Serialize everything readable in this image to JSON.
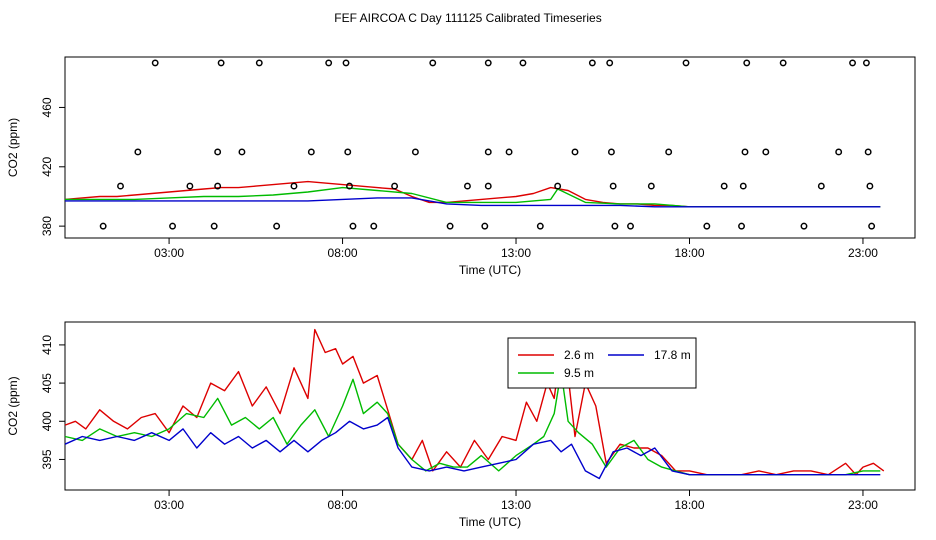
{
  "title": "FEF AIRCOA C  Day 111125  Calibrated Timeseries",
  "chart_data": [
    {
      "type": "scatter",
      "xlabel": "Time (UTC)",
      "ylabel": "CO2 (ppm)",
      "xlim": [
        0,
        24.5
      ],
      "ylim": [
        372,
        494
      ],
      "x_ticks": [
        3,
        8,
        13,
        18,
        23
      ],
      "x_tick_labels": [
        "03:00",
        "08:00",
        "13:00",
        "18:00",
        "23:00"
      ],
      "y_ticks": [
        380,
        420,
        460
      ],
      "y_tick_labels": [
        "380",
        "420",
        "460"
      ],
      "markers": [
        {
          "x": 1.1,
          "y": 380
        },
        {
          "x": 1.6,
          "y": 407
        },
        {
          "x": 2.1,
          "y": 430
        },
        {
          "x": 2.6,
          "y": 490
        },
        {
          "x": 3.1,
          "y": 380
        },
        {
          "x": 3.6,
          "y": 407
        },
        {
          "x": 4.3,
          "y": 380
        },
        {
          "x": 4.4,
          "y": 407
        },
        {
          "x": 4.4,
          "y": 430
        },
        {
          "x": 4.5,
          "y": 490
        },
        {
          "x": 5.1,
          "y": 430
        },
        {
          "x": 5.6,
          "y": 490
        },
        {
          "x": 6.1,
          "y": 380
        },
        {
          "x": 6.6,
          "y": 407
        },
        {
          "x": 7.1,
          "y": 430
        },
        {
          "x": 7.6,
          "y": 490
        },
        {
          "x": 8.1,
          "y": 490
        },
        {
          "x": 8.15,
          "y": 430
        },
        {
          "x": 8.2,
          "y": 407
        },
        {
          "x": 8.3,
          "y": 380
        },
        {
          "x": 8.9,
          "y": 380
        },
        {
          "x": 9.5,
          "y": 407
        },
        {
          "x": 10.1,
          "y": 430
        },
        {
          "x": 10.6,
          "y": 490
        },
        {
          "x": 11.1,
          "y": 380
        },
        {
          "x": 11.6,
          "y": 407
        },
        {
          "x": 12.1,
          "y": 380
        },
        {
          "x": 12.2,
          "y": 407
        },
        {
          "x": 12.2,
          "y": 430
        },
        {
          "x": 12.2,
          "y": 490
        },
        {
          "x": 12.8,
          "y": 430
        },
        {
          "x": 13.2,
          "y": 490
        },
        {
          "x": 13.7,
          "y": 380
        },
        {
          "x": 14.2,
          "y": 407
        },
        {
          "x": 14.7,
          "y": 430
        },
        {
          "x": 15.2,
          "y": 490
        },
        {
          "x": 15.7,
          "y": 490
        },
        {
          "x": 15.75,
          "y": 430
        },
        {
          "x": 15.8,
          "y": 407
        },
        {
          "x": 15.85,
          "y": 380
        },
        {
          "x": 16.3,
          "y": 380
        },
        {
          "x": 16.9,
          "y": 407
        },
        {
          "x": 17.4,
          "y": 430
        },
        {
          "x": 17.9,
          "y": 490
        },
        {
          "x": 18.5,
          "y": 380
        },
        {
          "x": 19.0,
          "y": 407
        },
        {
          "x": 19.5,
          "y": 380
        },
        {
          "x": 19.55,
          "y": 407
        },
        {
          "x": 19.6,
          "y": 430
        },
        {
          "x": 19.65,
          "y": 490
        },
        {
          "x": 20.2,
          "y": 430
        },
        {
          "x": 20.7,
          "y": 490
        },
        {
          "x": 21.3,
          "y": 380
        },
        {
          "x": 21.8,
          "y": 407
        },
        {
          "x": 22.3,
          "y": 430
        },
        {
          "x": 22.7,
          "y": 490
        },
        {
          "x": 23.1,
          "y": 490
        },
        {
          "x": 23.15,
          "y": 430
        },
        {
          "x": 23.2,
          "y": 407
        },
        {
          "x": 23.25,
          "y": 380
        }
      ],
      "series": [
        {
          "name": "2.6 m",
          "color": "#dd0000",
          "x": [
            0,
            0.5,
            1,
            1.5,
            2,
            2.5,
            3,
            3.5,
            4,
            4.5,
            5,
            5.5,
            6,
            6.5,
            7,
            7.5,
            8,
            8.5,
            9,
            9.5,
            10,
            10.5,
            11,
            11.5,
            12,
            12.5,
            13,
            13.5,
            14,
            14.5,
            15,
            15.5,
            16,
            16.5,
            17,
            17.5,
            18,
            19,
            20,
            21,
            22,
            23,
            23.5
          ],
          "y": [
            398,
            399,
            400,
            400,
            401,
            402,
            403,
            404,
            405,
            406,
            406,
            407,
            408,
            409,
            410,
            409,
            408,
            407,
            406,
            405,
            400,
            396,
            396,
            397,
            398,
            399,
            400,
            402,
            406,
            404,
            398,
            396,
            395,
            395,
            394,
            394,
            393,
            393,
            393,
            393,
            393,
            393,
            393
          ]
        },
        {
          "name": "9.5 m",
          "color": "#00bb00",
          "x": [
            0,
            1,
            2,
            3,
            4,
            5,
            6,
            7,
            8,
            9,
            10,
            11,
            12,
            13,
            14,
            14.2,
            15,
            16,
            17,
            18,
            19,
            20,
            21,
            22,
            23,
            23.5
          ],
          "y": [
            398,
            398,
            398,
            399,
            400,
            400,
            401,
            403,
            406,
            404,
            402,
            396,
            396,
            396,
            398,
            405,
            396,
            395,
            395,
            393,
            393,
            393,
            393,
            393,
            393,
            393
          ]
        },
        {
          "name": "17.8 m",
          "color": "#0000cc",
          "x": [
            0,
            1,
            2,
            3,
            4,
            5,
            6,
            7,
            8,
            9,
            10,
            11,
            12,
            13,
            14,
            15,
            16,
            17,
            18,
            19,
            20,
            21,
            22,
            23,
            23.5
          ],
          "y": [
            397,
            397,
            397,
            397,
            397,
            397,
            397,
            397,
            398,
            399,
            399,
            395,
            394,
            394,
            394,
            394,
            394,
            393,
            393,
            393,
            393,
            393,
            393,
            393,
            393
          ]
        }
      ]
    },
    {
      "type": "line",
      "xlabel": "Time (UTC)",
      "ylabel": "CO2 (ppm)",
      "xlim": [
        0,
        24.5
      ],
      "ylim": [
        391,
        413
      ],
      "x_ticks": [
        3,
        8,
        13,
        18,
        23
      ],
      "x_tick_labels": [
        "03:00",
        "08:00",
        "13:00",
        "18:00",
        "23:00"
      ],
      "y_ticks": [
        395,
        400,
        405,
        410
      ],
      "y_tick_labels": [
        "395",
        "400",
        "405",
        "410"
      ],
      "legend": {
        "position": "top-center",
        "entries": [
          "2.6 m",
          "17.8 m",
          "9.5 m"
        ]
      },
      "series": [
        {
          "name": "2.6 m",
          "color": "#dd0000",
          "x": [
            0,
            0.3,
            0.6,
            1.0,
            1.4,
            1.8,
            2.2,
            2.6,
            3.0,
            3.4,
            3.8,
            4.2,
            4.6,
            5.0,
            5.4,
            5.8,
            6.2,
            6.6,
            7.0,
            7.2,
            7.5,
            7.8,
            8.0,
            8.3,
            8.6,
            9.0,
            9.3,
            9.6,
            10.0,
            10.3,
            10.6,
            11.0,
            11.4,
            11.8,
            12.2,
            12.6,
            13.0,
            13.3,
            13.6,
            13.9,
            14.1,
            14.3,
            14.5,
            14.7,
            15.0,
            15.3,
            15.6,
            16.0,
            16.4,
            16.8,
            17.2,
            17.6,
            18.0,
            18.5,
            19.0,
            19.5,
            20.0,
            20.5,
            21.0,
            21.5,
            22.0,
            22.5,
            22.8,
            23.0,
            23.3,
            23.6
          ],
          "y": [
            399.5,
            400.0,
            399.0,
            401.5,
            400.0,
            399.0,
            400.5,
            401.0,
            398.5,
            402.0,
            400.5,
            405.0,
            404.0,
            406.5,
            402.0,
            404.5,
            401.0,
            407.0,
            403.0,
            412.0,
            409.0,
            409.5,
            407.5,
            408.5,
            405.0,
            406.0,
            401.5,
            397.0,
            395.0,
            397.5,
            393.5,
            396.0,
            394.0,
            397.5,
            395.0,
            398.0,
            397.5,
            402.5,
            400.0,
            405.0,
            403.0,
            410.0,
            406.0,
            398.0,
            405.0,
            402.0,
            394.5,
            397.0,
            396.5,
            396.5,
            395.5,
            393.5,
            393.5,
            393.0,
            393.0,
            393.0,
            393.5,
            393.0,
            393.5,
            393.5,
            393.0,
            394.5,
            393.0,
            394.0,
            394.5,
            393.5
          ]
        },
        {
          "name": "9.5 m",
          "color": "#00bb00",
          "x": [
            0,
            0.5,
            1.0,
            1.5,
            2.0,
            2.5,
            3.0,
            3.5,
            4.0,
            4.4,
            4.8,
            5.2,
            5.6,
            6.0,
            6.4,
            6.8,
            7.2,
            7.6,
            8.0,
            8.3,
            8.6,
            9.0,
            9.3,
            9.6,
            10.0,
            10.4,
            10.8,
            11.2,
            11.6,
            12.0,
            12.5,
            13.0,
            13.5,
            13.8,
            14.1,
            14.3,
            14.5,
            14.8,
            15.2,
            15.6,
            16.0,
            16.4,
            16.8,
            17.2,
            17.6,
            18.0,
            18.5,
            19.0,
            19.5,
            20.0,
            21.0,
            22.0,
            22.5,
            23.0,
            23.5
          ],
          "y": [
            398.0,
            397.5,
            399.0,
            398.0,
            398.5,
            398.0,
            399.0,
            401.0,
            400.5,
            403.0,
            399.5,
            400.5,
            399.0,
            400.5,
            397.0,
            399.5,
            401.5,
            398.0,
            402.0,
            405.5,
            401.0,
            402.5,
            401.0,
            397.0,
            395.0,
            393.5,
            394.5,
            394.0,
            394.0,
            395.5,
            393.5,
            395.5,
            397.0,
            398.0,
            401.0,
            406.5,
            400.0,
            398.5,
            397.0,
            394.0,
            396.5,
            397.5,
            395.0,
            394.0,
            393.5,
            393.0,
            393.0,
            393.0,
            393.0,
            393.0,
            393.0,
            393.0,
            393.0,
            393.5,
            393.5
          ]
        },
        {
          "name": "17.8 m",
          "color": "#0000cc",
          "x": [
            0,
            0.5,
            1.0,
            1.5,
            2.0,
            2.5,
            3.0,
            3.4,
            3.8,
            4.2,
            4.6,
            5.0,
            5.4,
            5.8,
            6.2,
            6.6,
            7.0,
            7.4,
            7.8,
            8.2,
            8.6,
            9.0,
            9.3,
            9.6,
            10.0,
            10.5,
            11.0,
            11.5,
            12.0,
            12.5,
            13.0,
            13.5,
            14.0,
            14.3,
            14.6,
            15.0,
            15.4,
            15.8,
            16.2,
            16.6,
            17.0,
            17.5,
            18.0,
            18.5,
            19.0,
            20.0,
            21.0,
            22.0,
            23.0,
            23.5
          ],
          "y": [
            397.0,
            398.0,
            397.5,
            398.0,
            397.5,
            398.5,
            397.5,
            399.0,
            396.5,
            398.5,
            397.0,
            398.0,
            396.5,
            397.5,
            396.0,
            397.5,
            396.0,
            397.5,
            398.5,
            400.0,
            399.0,
            399.5,
            400.5,
            396.5,
            394.0,
            393.5,
            394.0,
            393.5,
            394.0,
            394.5,
            395.0,
            397.0,
            397.5,
            396.0,
            397.0,
            393.5,
            392.5,
            396.0,
            396.5,
            395.5,
            396.5,
            393.5,
            393.0,
            393.0,
            393.0,
            393.0,
            393.0,
            393.0,
            393.0,
            393.0
          ]
        }
      ]
    }
  ]
}
